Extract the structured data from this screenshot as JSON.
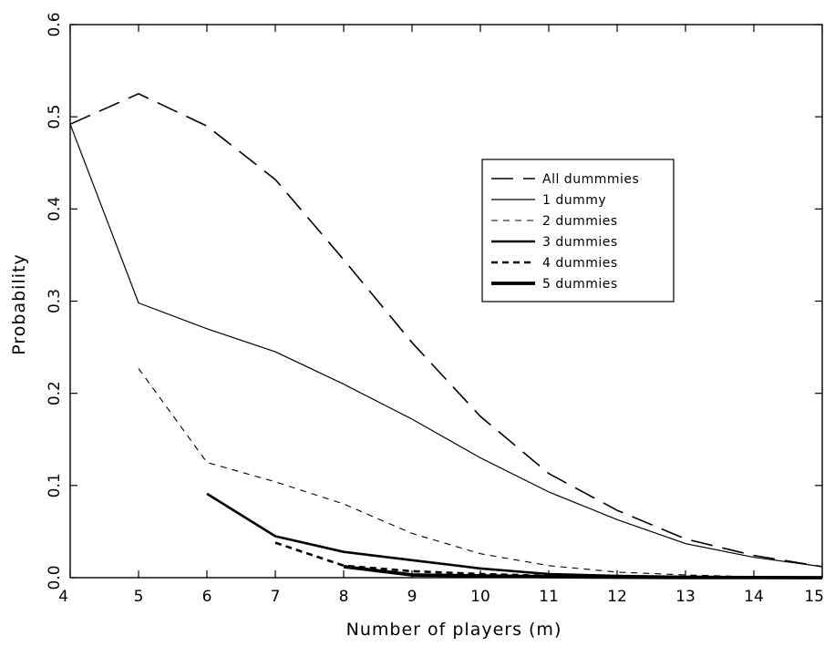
{
  "chart_data": {
    "type": "line",
    "title": "",
    "xlabel": "Number of players (m)",
    "ylabel": "Probability",
    "xlim": [
      4,
      15
    ],
    "ylim": [
      0,
      0.6
    ],
    "xticks": [
      "4",
      "5",
      "6",
      "7",
      "8",
      "9",
      "10",
      "11",
      "12",
      "13",
      "14",
      "15"
    ],
    "yticks": [
      "0.0",
      "0.1",
      "0.2",
      "0.3",
      "0.4",
      "0.5",
      "0.6"
    ],
    "grid": false,
    "legend_position": "upper-right",
    "series": [
      {
        "name": "All dummmies",
        "style": "long-dash",
        "color": "#000000",
        "x": [
          4,
          5,
          6,
          7,
          8,
          9,
          10,
          11,
          12,
          13,
          14,
          15
        ],
        "y": [
          0.492,
          0.525,
          0.49,
          0.432,
          0.345,
          0.255,
          0.175,
          0.113,
          0.073,
          0.042,
          0.024,
          0.012
        ]
      },
      {
        "name": "1 dummy",
        "style": "solid-thin",
        "color": "#000000",
        "x": [
          4,
          5,
          6,
          7,
          8,
          9,
          10,
          11,
          12,
          13,
          14,
          15
        ],
        "y": [
          0.492,
          0.298,
          0.27,
          0.245,
          0.21,
          0.172,
          0.13,
          0.093,
          0.063,
          0.037,
          0.022,
          0.012
        ]
      },
      {
        "name": "2 dummies",
        "style": "short-dash-thin",
        "color": "#000000",
        "x": [
          5,
          6,
          7,
          8,
          9,
          10,
          11,
          12,
          13,
          14,
          15
        ],
        "y": [
          0.227,
          0.125,
          0.104,
          0.08,
          0.048,
          0.026,
          0.013,
          0.006,
          0.003,
          0.001,
          0.0005
        ]
      },
      {
        "name": "3 dummies",
        "style": "solid-medium",
        "color": "#000000",
        "x": [
          6,
          7,
          8,
          9,
          10,
          11,
          12,
          13,
          14,
          15
        ],
        "y": [
          0.091,
          0.045,
          0.028,
          0.019,
          0.01,
          0.004,
          0.002,
          0.001,
          0.0005,
          0.0002
        ]
      },
      {
        "name": "4 dummies",
        "style": "short-dash-thick",
        "color": "#000000",
        "x": [
          7,
          8,
          9,
          10,
          11,
          12,
          13,
          14,
          15
        ],
        "y": [
          0.038,
          0.013,
          0.007,
          0.004,
          0.002,
          0.001,
          0.0005,
          0.0002,
          0.0001
        ]
      },
      {
        "name": "5 dummies",
        "style": "solid-thick",
        "color": "#000000",
        "x": [
          8,
          9,
          10,
          11,
          12,
          13,
          14,
          15
        ],
        "y": [
          0.012,
          0.003,
          0.002,
          0.001,
          0.0005,
          0.0002,
          0.0001,
          0.0
        ]
      }
    ]
  }
}
